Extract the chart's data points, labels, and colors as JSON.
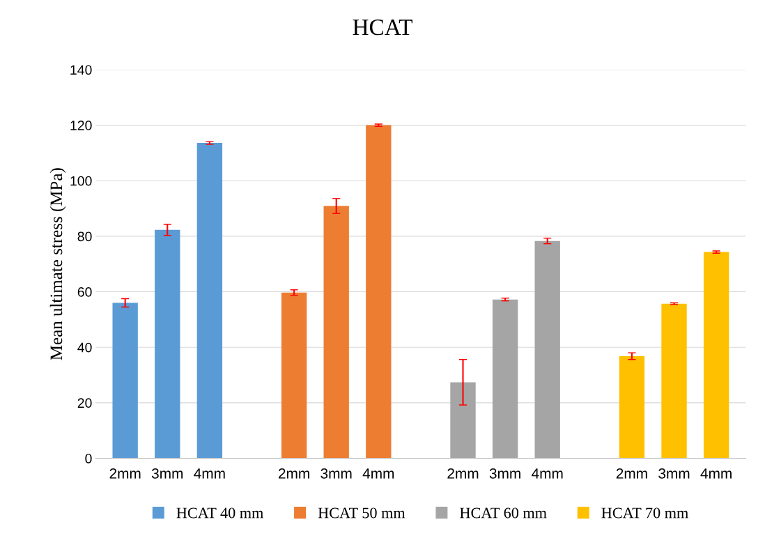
{
  "chart_data": {
    "type": "bar",
    "title": "HCAT",
    "ylabel": "Mean ultimate stress (MPa)",
    "categories": [
      "2mm",
      "3mm",
      "4mm",
      null,
      "2mm",
      "3mm",
      "4mm",
      null,
      "2mm",
      "3mm",
      "4mm",
      null,
      "2mm",
      "3mm",
      "4mm"
    ],
    "series": [
      {
        "name": "HCAT 40 mm",
        "color": "#5b9bd5",
        "values": [
          56,
          82.3,
          113.6,
          null,
          null,
          null,
          null,
          null,
          null,
          null,
          null,
          null,
          null,
          null,
          null
        ],
        "errors": [
          1.5,
          2,
          0.5,
          null,
          null,
          null,
          null,
          null,
          null,
          null,
          null,
          null,
          null,
          null,
          null
        ]
      },
      {
        "name": "HCAT 50 mm",
        "color": "#ed7d31",
        "values": [
          null,
          null,
          null,
          null,
          59.7,
          90.9,
          120,
          null,
          null,
          null,
          null,
          null,
          null,
          null,
          null
        ],
        "errors": [
          null,
          null,
          null,
          null,
          1,
          2.7,
          0.4,
          null,
          null,
          null,
          null,
          null,
          null,
          null,
          null
        ]
      },
      {
        "name": "HCAT 60 mm",
        "color": "#a5a5a5",
        "values": [
          null,
          null,
          null,
          null,
          null,
          null,
          null,
          null,
          27.4,
          57.2,
          78.3,
          null,
          null,
          null,
          null
        ],
        "errors": [
          null,
          null,
          null,
          null,
          null,
          null,
          null,
          null,
          8.2,
          0.5,
          1,
          null,
          null,
          null,
          null
        ]
      },
      {
        "name": "HCAT 70 mm",
        "color": "#ffc000",
        "values": [
          null,
          null,
          null,
          null,
          null,
          null,
          null,
          null,
          null,
          null,
          null,
          null,
          36.8,
          55.7,
          74.3
        ],
        "errors": [
          null,
          null,
          null,
          null,
          null,
          null,
          null,
          null,
          null,
          null,
          null,
          null,
          1.2,
          0.3,
          0.4
        ]
      }
    ],
    "ylim": [
      0,
      140
    ],
    "yticks": [
      0,
      20,
      40,
      60,
      80,
      100,
      120,
      140
    ],
    "grid": "y",
    "legend": "bottom"
  }
}
